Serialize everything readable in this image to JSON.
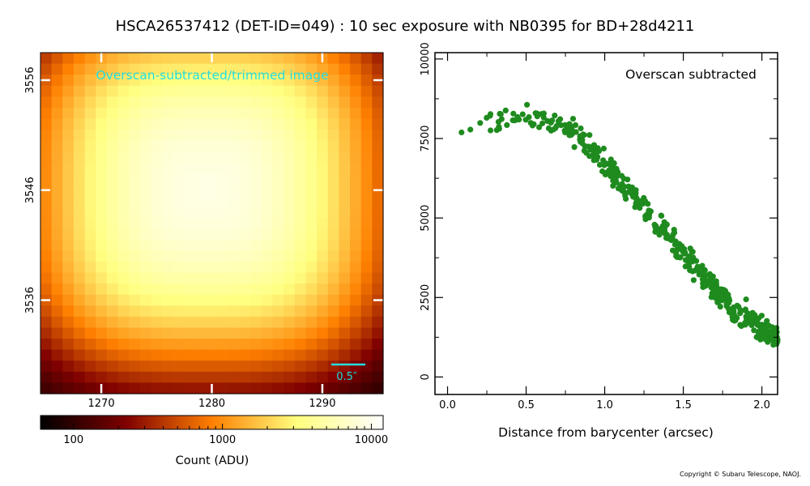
{
  "title": "HSCA26537412 (DET-ID=049) :  10 sec exposure with NB0395 for BD+28d4211",
  "copyright": "Copyright © Subaru Telescope, NAOJ.",
  "colors": {
    "image_label": "#22dddd",
    "scalebar": "#22dddd",
    "scatter_points": "#1f8b1f"
  },
  "chart_data": [
    {
      "type": "heatmap",
      "annotation": "Overscan-subtracted/trimmed image",
      "scalebar_label": "0.5″",
      "colormap": "afmhot",
      "xlim": [
        1264.5,
        1295.5
      ],
      "ylim": [
        3527.5,
        3558.5
      ],
      "xticks": [
        1270,
        1280,
        1290
      ],
      "yticks": [
        3536,
        3546,
        3556
      ],
      "grid_size": [
        31,
        31
      ],
      "center": [
        1279.5,
        3546
      ],
      "peak_adu": 9000,
      "background_adu": 60,
      "colorbar": {
        "label": "Count (ADU)",
        "scale": "log",
        "range": [
          60,
          12000
        ],
        "ticks": [
          {
            "value": 100,
            "label": "100"
          },
          {
            "value": 1000,
            "label": "1000"
          },
          {
            "value": 10000,
            "label": "10000"
          }
        ]
      }
    },
    {
      "type": "scatter",
      "annotation": "Overscan subtracted",
      "xlabel": "Distance from barycenter (arcsec)",
      "ylabel": "",
      "xlim": [
        -0.08,
        2.1
      ],
      "ylim": [
        -550,
        10200
      ],
      "xticks": [
        {
          "value": 0.0,
          "label": "0.0"
        },
        {
          "value": 0.5,
          "label": "0.5"
        },
        {
          "value": 1.0,
          "label": "1.0"
        },
        {
          "value": 1.5,
          "label": "1.5"
        },
        {
          "value": 2.0,
          "label": "2.0"
        }
      ],
      "yticks": [
        {
          "value": 0,
          "label": "0"
        },
        {
          "value": 2500,
          "label": "2500"
        },
        {
          "value": 5000,
          "label": "5000"
        },
        {
          "value": 7500,
          "label": "7500"
        },
        {
          "value": 10000,
          "label": "10000"
        }
      ],
      "profile": [
        [
          0.05,
          7900
        ],
        [
          0.2,
          8100
        ],
        [
          0.4,
          8200
        ],
        [
          0.6,
          8150
        ],
        [
          0.8,
          7700
        ],
        [
          1.0,
          6700
        ],
        [
          1.2,
          5600
        ],
        [
          1.4,
          4500
        ],
        [
          1.6,
          3300
        ],
        [
          1.8,
          2200
        ],
        [
          2.0,
          1500
        ],
        [
          2.1,
          1300
        ]
      ],
      "n_points": 460,
      "scatter_spread": 500
    }
  ]
}
